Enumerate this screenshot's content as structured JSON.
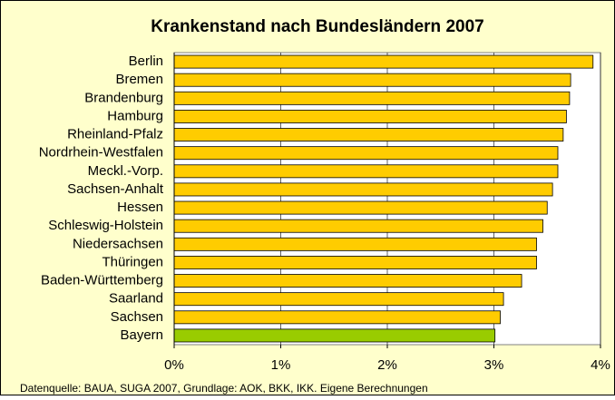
{
  "chart_data": {
    "type": "barh",
    "title": "Krankenstand nach Bundesländern 2007",
    "source": "Datenquelle: BAUA, SUGA 2007, Grundlage: AOK, BKK, IKK. Eigene Berechnungen",
    "categories": [
      "Berlin",
      "Bremen",
      "Brandenburg",
      "Hamburg",
      "Rheinland-Pfalz",
      "Nordrhein-Westfalen",
      "Meckl.-Vorp.",
      "Sachsen-Anhalt",
      "Hessen",
      "Schleswig-Holstein",
      "Niedersachsen",
      "Thüringen",
      "Baden-Württemberg",
      "Saarland",
      "Sachsen",
      "Bayern"
    ],
    "values": [
      3.93,
      3.72,
      3.71,
      3.68,
      3.65,
      3.6,
      3.6,
      3.55,
      3.5,
      3.46,
      3.4,
      3.4,
      3.26,
      3.09,
      3.06,
      3.01
    ],
    "colors": [
      "#ffcc00",
      "#ffcc00",
      "#ffcc00",
      "#ffcc00",
      "#ffcc00",
      "#ffcc00",
      "#ffcc00",
      "#ffcc00",
      "#ffcc00",
      "#ffcc00",
      "#ffcc00",
      "#ffcc00",
      "#ffcc00",
      "#ffcc00",
      "#ffcc00",
      "#99cc00"
    ],
    "xlim": [
      0,
      4
    ],
    "xticks": [
      {
        "value": 0,
        "label": "0%"
      },
      {
        "value": 1,
        "label": "1%"
      },
      {
        "value": 2,
        "label": "2%"
      },
      {
        "value": 3,
        "label": "3%"
      },
      {
        "value": 4,
        "label": "4%"
      }
    ],
    "grid": true
  }
}
